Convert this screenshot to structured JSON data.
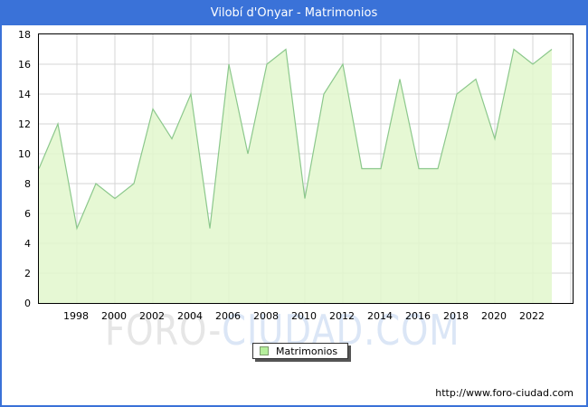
{
  "window": {
    "title": "Vilobí d'Onyar - Matrimonios"
  },
  "chart_data": {
    "type": "area",
    "title": "Vilobí d'Onyar - Matrimonios",
    "x": [
      1996,
      1997,
      1998,
      1999,
      2000,
      2001,
      2002,
      2003,
      2004,
      2005,
      2006,
      2007,
      2008,
      2009,
      2010,
      2011,
      2012,
      2013,
      2014,
      2015,
      2016,
      2017,
      2018,
      2019,
      2020,
      2021,
      2022,
      2023
    ],
    "series": [
      {
        "name": "Matrimonios",
        "values": [
          9,
          12,
          5,
          8,
          7,
          8,
          13,
          11,
          14,
          5,
          16,
          10,
          16,
          17,
          7,
          14,
          16,
          9,
          9,
          15,
          9,
          9,
          14,
          15,
          11,
          17,
          16,
          17
        ]
      }
    ],
    "ylim": [
      0,
      18
    ],
    "ytick_step": 2,
    "yticks": [
      0,
      2,
      4,
      6,
      8,
      10,
      12,
      14,
      16,
      18
    ],
    "xticks": [
      1998,
      2000,
      2002,
      2004,
      2006,
      2008,
      2010,
      2012,
      2014,
      2016,
      2018,
      2020,
      2022
    ],
    "xlabel": "",
    "ylabel": "",
    "grid": true,
    "legend_position": "bottom-center"
  },
  "legend": {
    "label": "Matrimonios"
  },
  "watermark": {
    "gray": "FORO-",
    "blue": "CIUDAD.COM"
  },
  "source_url": "http://www.foro-ciudad.com",
  "colors": {
    "titlebar": "#3a72d8",
    "frame_border": "#3a72d8",
    "gridline": "#d4d4d4",
    "area_fill": "#e2f7cd",
    "area_line": "#8cc88c",
    "legend_swatch": "#b5ee9c",
    "watermark_gray": "#e6e6e6",
    "watermark_blue": "#dbe6f6"
  }
}
